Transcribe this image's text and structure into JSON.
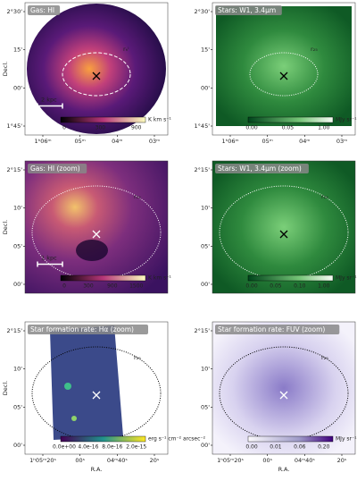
{
  "figure": {
    "y_label": "Decl.",
    "x_label": "R.A.",
    "panels": [
      {
        "title": "Gas: HI",
        "ellipse_label": "rₕᴵ",
        "scale_label": "2 kpc",
        "yticks": [
          "2°30'",
          "15'",
          "00'",
          "1°45'"
        ],
        "xticks": [
          "1ʰ06ᵐ",
          "05ᵐ",
          "04ᵐ",
          "03ᵐ"
        ],
        "colorbar_ticks": [
          "0",
          "300",
          "900"
        ],
        "colorbar_unit": "K km s⁻¹"
      },
      {
        "title": "Stars: W1, 3.4μm",
        "ellipse_label": "r₂₅",
        "yticks": [
          "2°30'",
          "15'",
          "00'",
          "1°45'"
        ],
        "xticks": [
          "1ʰ06ᵐ",
          "05ᵐ",
          "04ᵐ",
          "03ᵐ"
        ],
        "colorbar_ticks": [
          "0.00",
          "0.05",
          "1.00"
        ],
        "colorbar_unit": "MJy sr⁻¹"
      },
      {
        "title": "Gas: HI (zoom)",
        "ellipse_label": "r₂₅",
        "scale_label": "1 kpc",
        "yticks": [
          "2°15'",
          "10'",
          "05'",
          "00'"
        ],
        "colorbar_ticks": [
          "0",
          "300",
          "900",
          "1500"
        ],
        "colorbar_unit": "K km s⁻¹"
      },
      {
        "title": "Stars: W1, 3.4μm (zoom)",
        "ellipse_label": "r₂₅",
        "yticks": [
          "2°15'",
          "10'",
          "05'",
          "00'"
        ],
        "colorbar_ticks": [
          "0.00",
          "0.05",
          "0.10",
          "1.00"
        ],
        "colorbar_unit": "MJy sr⁻¹"
      },
      {
        "title": "Star formation rate: Hα (zoom)",
        "ellipse_label": "r₂₅",
        "yticks": [
          "2°15'",
          "10'",
          "05'",
          "00'"
        ],
        "xticks": [
          "1ʰ05ᵐ20ˢ",
          "00ˢ",
          "04ᵐ40ˢ",
          "20ˢ"
        ],
        "colorbar_ticks": [
          "0.0e+00",
          "4.0e-16",
          "8.0e-16",
          "2.0e-15"
        ],
        "colorbar_unit": "erg s⁻¹ cm⁻² arcsec⁻²"
      },
      {
        "title": "Star formation rate: FUV (zoom)",
        "ellipse_label": "r₂₅",
        "yticks": [
          "2°15'",
          "10'",
          "05'",
          "00'"
        ],
        "xticks": [
          "1ʰ05ᵐ20ˢ",
          "00ˢ",
          "04ᵐ40ˢ",
          "20ˢ"
        ],
        "colorbar_ticks": [
          "0.00",
          "0.01",
          "0.06",
          "0.20"
        ],
        "colorbar_unit": "MJy sr⁻¹"
      }
    ]
  }
}
